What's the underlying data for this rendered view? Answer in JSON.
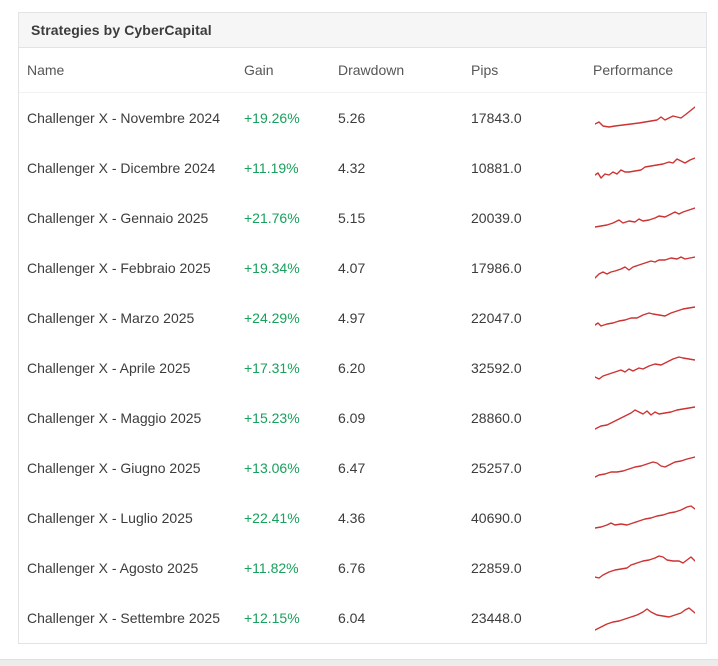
{
  "panel": {
    "title": "Strategies by CyberCapital"
  },
  "colors": {
    "gain_positive": "#18a05c",
    "sparkline": "#cc3333"
  },
  "table": {
    "columns": [
      "Name",
      "Gain",
      "Drawdown",
      "Pips",
      "Performance"
    ],
    "rows": [
      {
        "name": "Challenger X - Novembre 2024",
        "gain": "+19.26%",
        "drawdown": "5.26",
        "pips": "17843.0",
        "spark": [
          [
            0,
            21
          ],
          [
            4,
            19
          ],
          [
            8,
            23
          ],
          [
            14,
            24
          ],
          [
            20,
            23
          ],
          [
            28,
            22
          ],
          [
            36,
            21
          ],
          [
            44,
            20
          ],
          [
            50,
            19
          ],
          [
            56,
            18
          ],
          [
            62,
            17
          ],
          [
            66,
            14
          ],
          [
            70,
            17
          ],
          [
            74,
            15
          ],
          [
            78,
            13
          ],
          [
            82,
            14
          ],
          [
            86,
            15
          ],
          [
            90,
            12
          ],
          [
            95,
            8
          ],
          [
            100,
            4
          ]
        ]
      },
      {
        "name": "Challenger X - Dicembre 2024",
        "gain": "+11.19%",
        "drawdown": "4.32",
        "pips": "10881.0",
        "spark": [
          [
            0,
            22
          ],
          [
            3,
            20
          ],
          [
            6,
            25
          ],
          [
            10,
            21
          ],
          [
            14,
            22
          ],
          [
            18,
            19
          ],
          [
            22,
            21
          ],
          [
            26,
            17
          ],
          [
            30,
            19
          ],
          [
            34,
            19
          ],
          [
            40,
            18
          ],
          [
            46,
            17
          ],
          [
            50,
            14
          ],
          [
            56,
            13
          ],
          [
            62,
            12
          ],
          [
            68,
            11
          ],
          [
            74,
            9
          ],
          [
            78,
            10
          ],
          [
            82,
            6
          ],
          [
            86,
            8
          ],
          [
            90,
            10
          ],
          [
            95,
            7
          ],
          [
            100,
            5
          ]
        ]
      },
      {
        "name": "Challenger X - Gennaio 2025",
        "gain": "+21.76%",
        "drawdown": "5.15",
        "pips": "20039.0",
        "spark": [
          [
            0,
            24
          ],
          [
            6,
            23
          ],
          [
            12,
            22
          ],
          [
            18,
            20
          ],
          [
            24,
            17
          ],
          [
            28,
            20
          ],
          [
            34,
            18
          ],
          [
            40,
            19
          ],
          [
            44,
            16
          ],
          [
            48,
            18
          ],
          [
            54,
            17
          ],
          [
            60,
            15
          ],
          [
            64,
            13
          ],
          [
            70,
            14
          ],
          [
            76,
            11
          ],
          [
            80,
            9
          ],
          [
            84,
            11
          ],
          [
            88,
            9
          ],
          [
            94,
            7
          ],
          [
            100,
            5
          ]
        ]
      },
      {
        "name": "Challenger X - Febbraio 2025",
        "gain": "+19.34%",
        "drawdown": "4.07",
        "pips": "17986.0",
        "spark": [
          [
            0,
            25
          ],
          [
            4,
            21
          ],
          [
            8,
            19
          ],
          [
            12,
            21
          ],
          [
            16,
            19
          ],
          [
            20,
            18
          ],
          [
            26,
            16
          ],
          [
            30,
            14
          ],
          [
            34,
            17
          ],
          [
            38,
            14
          ],
          [
            44,
            12
          ],
          [
            50,
            10
          ],
          [
            56,
            8
          ],
          [
            60,
            9
          ],
          [
            64,
            7
          ],
          [
            70,
            7
          ],
          [
            76,
            5
          ],
          [
            82,
            6
          ],
          [
            86,
            4
          ],
          [
            90,
            6
          ],
          [
            95,
            5
          ],
          [
            100,
            4
          ]
        ]
      },
      {
        "name": "Challenger X - Marzo 2025",
        "gain": "+24.29%",
        "drawdown": "4.97",
        "pips": "22047.0",
        "spark": [
          [
            0,
            22
          ],
          [
            3,
            20
          ],
          [
            6,
            23
          ],
          [
            12,
            21
          ],
          [
            18,
            20
          ],
          [
            24,
            18
          ],
          [
            30,
            17
          ],
          [
            36,
            15
          ],
          [
            42,
            15
          ],
          [
            48,
            12
          ],
          [
            54,
            10
          ],
          [
            58,
            11
          ],
          [
            64,
            12
          ],
          [
            70,
            13
          ],
          [
            76,
            10
          ],
          [
            82,
            8
          ],
          [
            88,
            6
          ],
          [
            94,
            5
          ],
          [
            100,
            4
          ]
        ]
      },
      {
        "name": "Challenger X - Aprile 2025",
        "gain": "+17.31%",
        "drawdown": "6.20",
        "pips": "32592.0",
        "spark": [
          [
            0,
            24
          ],
          [
            4,
            26
          ],
          [
            8,
            23
          ],
          [
            14,
            21
          ],
          [
            20,
            19
          ],
          [
            26,
            17
          ],
          [
            30,
            19
          ],
          [
            34,
            16
          ],
          [
            38,
            18
          ],
          [
            44,
            15
          ],
          [
            48,
            16
          ],
          [
            54,
            13
          ],
          [
            60,
            11
          ],
          [
            66,
            12
          ],
          [
            72,
            9
          ],
          [
            78,
            6
          ],
          [
            84,
            4
          ],
          [
            88,
            5
          ],
          [
            94,
            6
          ],
          [
            100,
            7
          ]
        ]
      },
      {
        "name": "Challenger X - Maggio 2025",
        "gain": "+15.23%",
        "drawdown": "6.09",
        "pips": "28860.0",
        "spark": [
          [
            0,
            26
          ],
          [
            6,
            23
          ],
          [
            12,
            22
          ],
          [
            18,
            19
          ],
          [
            24,
            16
          ],
          [
            30,
            13
          ],
          [
            36,
            10
          ],
          [
            40,
            7
          ],
          [
            44,
            9
          ],
          [
            48,
            11
          ],
          [
            52,
            8
          ],
          [
            56,
            12
          ],
          [
            60,
            9
          ],
          [
            64,
            11
          ],
          [
            70,
            10
          ],
          [
            76,
            9
          ],
          [
            82,
            7
          ],
          [
            88,
            6
          ],
          [
            94,
            5
          ],
          [
            100,
            4
          ]
        ]
      },
      {
        "name": "Challenger X - Giugno 2025",
        "gain": "+13.06%",
        "drawdown": "6.47",
        "pips": "25257.0",
        "spark": [
          [
            0,
            24
          ],
          [
            4,
            22
          ],
          [
            10,
            21
          ],
          [
            16,
            19
          ],
          [
            22,
            19
          ],
          [
            28,
            18
          ],
          [
            34,
            16
          ],
          [
            40,
            14
          ],
          [
            46,
            13
          ],
          [
            52,
            11
          ],
          [
            58,
            9
          ],
          [
            62,
            10
          ],
          [
            66,
            13
          ],
          [
            70,
            14
          ],
          [
            74,
            12
          ],
          [
            80,
            9
          ],
          [
            86,
            8
          ],
          [
            92,
            6
          ],
          [
            100,
            4
          ]
        ]
      },
      {
        "name": "Challenger X - Luglio 2025",
        "gain": "+22.41%",
        "drawdown": "4.36",
        "pips": "40690.0",
        "spark": [
          [
            0,
            25
          ],
          [
            6,
            24
          ],
          [
            12,
            22
          ],
          [
            16,
            20
          ],
          [
            20,
            22
          ],
          [
            26,
            21
          ],
          [
            32,
            22
          ],
          [
            38,
            20
          ],
          [
            44,
            18
          ],
          [
            50,
            16
          ],
          [
            56,
            15
          ],
          [
            62,
            13
          ],
          [
            68,
            12
          ],
          [
            74,
            10
          ],
          [
            80,
            9
          ],
          [
            86,
            7
          ],
          [
            92,
            4
          ],
          [
            96,
            3
          ],
          [
            100,
            6
          ]
        ]
      },
      {
        "name": "Challenger X - Agosto 2025",
        "gain": "+11.82%",
        "drawdown": "6.76",
        "pips": "22859.0",
        "spark": [
          [
            0,
            24
          ],
          [
            4,
            25
          ],
          [
            8,
            22
          ],
          [
            14,
            19
          ],
          [
            20,
            17
          ],
          [
            26,
            16
          ],
          [
            32,
            15
          ],
          [
            36,
            12
          ],
          [
            42,
            10
          ],
          [
            48,
            8
          ],
          [
            54,
            7
          ],
          [
            60,
            5
          ],
          [
            64,
            3
          ],
          [
            68,
            4
          ],
          [
            72,
            7
          ],
          [
            78,
            8
          ],
          [
            84,
            8
          ],
          [
            88,
            10
          ],
          [
            92,
            7
          ],
          [
            96,
            4
          ],
          [
            100,
            8
          ]
        ]
      },
      {
        "name": "Challenger X - Settembre 2025",
        "gain": "+12.15%",
        "drawdown": "6.04",
        "pips": "23448.0",
        "spark": [
          [
            0,
            27
          ],
          [
            6,
            24
          ],
          [
            12,
            21
          ],
          [
            18,
            19
          ],
          [
            24,
            18
          ],
          [
            30,
            16
          ],
          [
            36,
            14
          ],
          [
            42,
            12
          ],
          [
            48,
            9
          ],
          [
            52,
            6
          ],
          [
            56,
            9
          ],
          [
            62,
            12
          ],
          [
            68,
            13
          ],
          [
            74,
            14
          ],
          [
            80,
            12
          ],
          [
            86,
            10
          ],
          [
            90,
            7
          ],
          [
            94,
            5
          ],
          [
            100,
            10
          ]
        ]
      }
    ]
  }
}
